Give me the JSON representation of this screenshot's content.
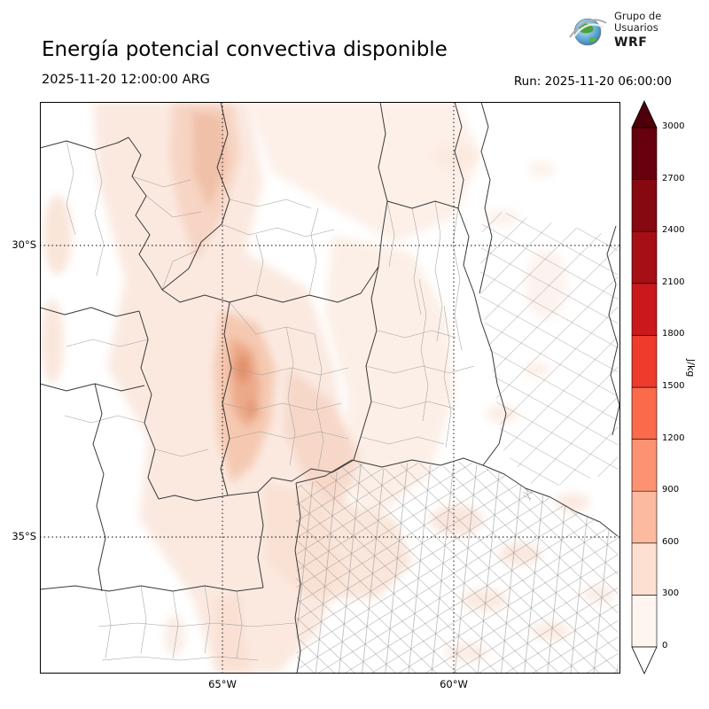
{
  "header": {
    "title": "Energía potencial convectiva disponible",
    "valid_time": "2025-11-20 12:00:00 ARG",
    "run_label": "Run: 2025-11-20 06:00:00",
    "logo": {
      "org_line1": "Grupo de",
      "org_line2": "Usuarios",
      "org_line3": "WRF"
    }
  },
  "map": {
    "lat_ticks": {
      "top": "30°S",
      "bottom": "35°S"
    },
    "lon_ticks": {
      "left": "65°W",
      "right": "60°W"
    }
  },
  "colorbar": {
    "unit": "J/kg",
    "ticks": [
      "0",
      "300",
      "600",
      "900",
      "1200",
      "1500",
      "1800",
      "2100",
      "2400",
      "2700",
      "3000"
    ],
    "segment_colors_low_to_high": [
      "#fff5f0",
      "#fee0d2",
      "#fcbba1",
      "#fc9272",
      "#fb6a4a",
      "#ef3b2c",
      "#cb181d",
      "#a50f15",
      "#860811",
      "#67000d"
    ],
    "under_arrow_color": "#ffffff",
    "over_arrow_color": "#4d0009"
  }
}
